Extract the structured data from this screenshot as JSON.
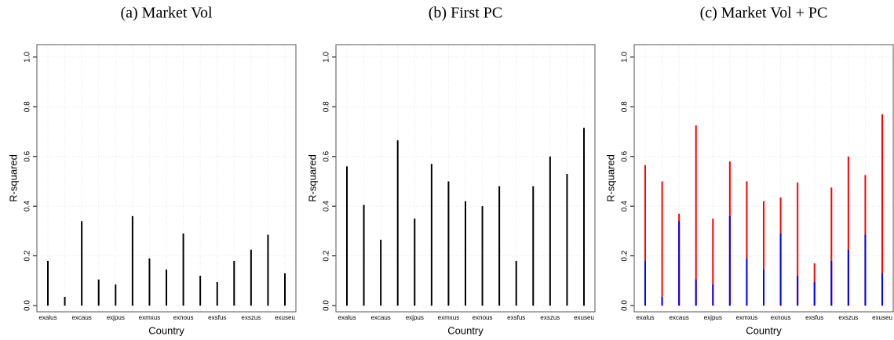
{
  "chart_data": [
    {
      "type": "bar",
      "title": "(a) Market Vol",
      "xlabel": "Country",
      "ylabel": "R-squared",
      "categories": [
        "exalus",
        null,
        "excaus",
        null,
        "exjpus",
        null,
        "exmxus",
        null,
        "exnous",
        null,
        "exsfus",
        null,
        "exszus",
        null,
        "exuseu"
      ],
      "series": [
        {
          "color": "#000000",
          "values": [
            0.18,
            0.035,
            0.34,
            0.105,
            0.085,
            0.36,
            0.19,
            0.145,
            0.29,
            0.12,
            0.095,
            0.18,
            0.225,
            0.285,
            0.13
          ]
        }
      ],
      "ylim": [
        -0.025,
        1.05
      ],
      "yticks": [
        {
          "value": 0,
          "label": "0.0"
        },
        0.2,
        0.4,
        0.6,
        0.8,
        {
          "value": 1,
          "label": "1.0"
        }
      ],
      "grid": true
    },
    {
      "type": "bar",
      "title": "(b) First PC",
      "xlabel": "Country",
      "ylabel": "R-squared",
      "categories": [
        "exalus",
        null,
        "excaus",
        null,
        "exjpus",
        null,
        "exmxus",
        null,
        "exnous",
        null,
        "exsfus",
        null,
        "exszus",
        null,
        "exuseu"
      ],
      "series": [
        {
          "color": "#000000",
          "values": [
            0.56,
            0.405,
            0.265,
            0.665,
            0.35,
            0.57,
            0.5,
            0.42,
            0.4,
            0.48,
            0.18,
            0.48,
            0.6,
            0.53,
            0.715
          ]
        }
      ],
      "ylim": [
        -0.025,
        1.05
      ],
      "yticks": [
        {
          "value": 0,
          "label": "0.0"
        },
        0.2,
        0.4,
        0.6,
        0.8,
        {
          "value": 1,
          "label": "1.0"
        }
      ],
      "grid": true
    },
    {
      "type": "bar",
      "title": "(c) Market Vol + PC",
      "xlabel": "Country",
      "ylabel": "R-squared",
      "categories": [
        "exalus",
        null,
        "excaus",
        null,
        "exjpus",
        null,
        "exmxus",
        null,
        "exnous",
        null,
        "exsfus",
        null,
        "exszus",
        null,
        "exuseu"
      ],
      "series": [
        {
          "color": "#ff0000",
          "values": [
            0.565,
            0.5,
            0.37,
            0.725,
            0.35,
            0.58,
            0.5,
            0.42,
            0.435,
            0.495,
            0.17,
            0.475,
            0.6,
            0.525,
            0.77
          ]
        },
        {
          "color": "#0000ff",
          "values": [
            0.18,
            0.035,
            0.34,
            0.105,
            0.085,
            0.36,
            0.19,
            0.145,
            0.29,
            0.12,
            0.095,
            0.18,
            0.225,
            0.285,
            0.13
          ]
        }
      ],
      "ylim": [
        -0.025,
        1.05
      ],
      "yticks": [
        {
          "value": 0,
          "label": "0.0"
        },
        0.2,
        0.4,
        0.6,
        0.8,
        {
          "value": 1,
          "label": "1.0"
        }
      ],
      "grid": true
    }
  ]
}
